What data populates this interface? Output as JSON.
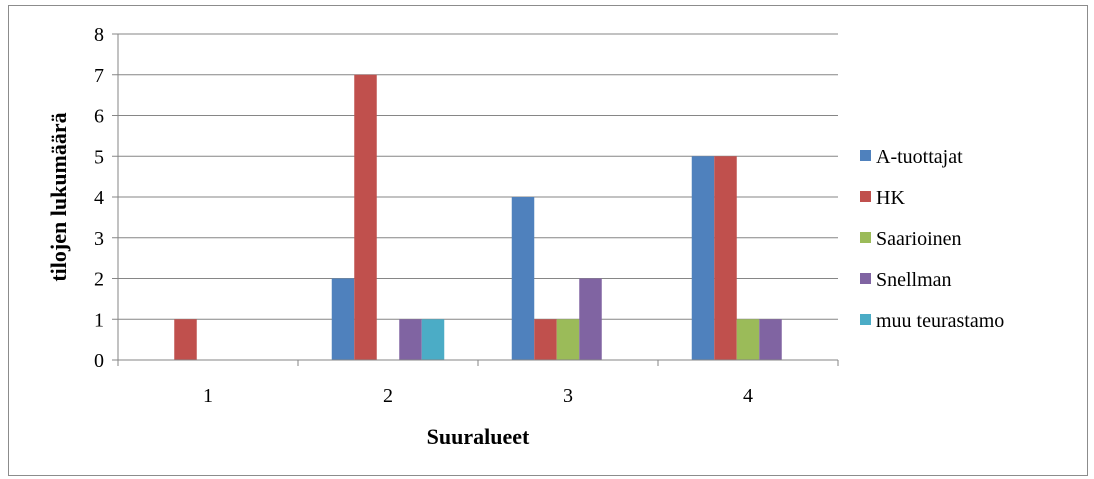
{
  "chart_data": {
    "type": "bar",
    "title": "",
    "xlabel": "Suuralueet",
    "ylabel": "tilojen lukumäärä",
    "categories": [
      "1",
      "2",
      "3",
      "4"
    ],
    "ylim": [
      0,
      8
    ],
    "yticks": [
      "0",
      "1",
      "2",
      "3",
      "4",
      "5",
      "6",
      "7",
      "8"
    ],
    "grid": true,
    "legend_position": "right",
    "series": [
      {
        "name": "A-tuottajat",
        "color": "#4f81bd",
        "values": [
          0,
          2,
          4,
          5
        ]
      },
      {
        "name": "HK",
        "color": "#c0504d",
        "values": [
          1,
          7,
          1,
          5
        ]
      },
      {
        "name": "Saarioinen",
        "color": "#9bbb59",
        "values": [
          0,
          0,
          1,
          1
        ]
      },
      {
        "name": "Snellman",
        "color": "#8064a2",
        "values": [
          0,
          1,
          2,
          1
        ]
      },
      {
        "name": "muu teurastamo",
        "color": "#4bacc6",
        "values": [
          0,
          1,
          0,
          0
        ]
      }
    ]
  }
}
